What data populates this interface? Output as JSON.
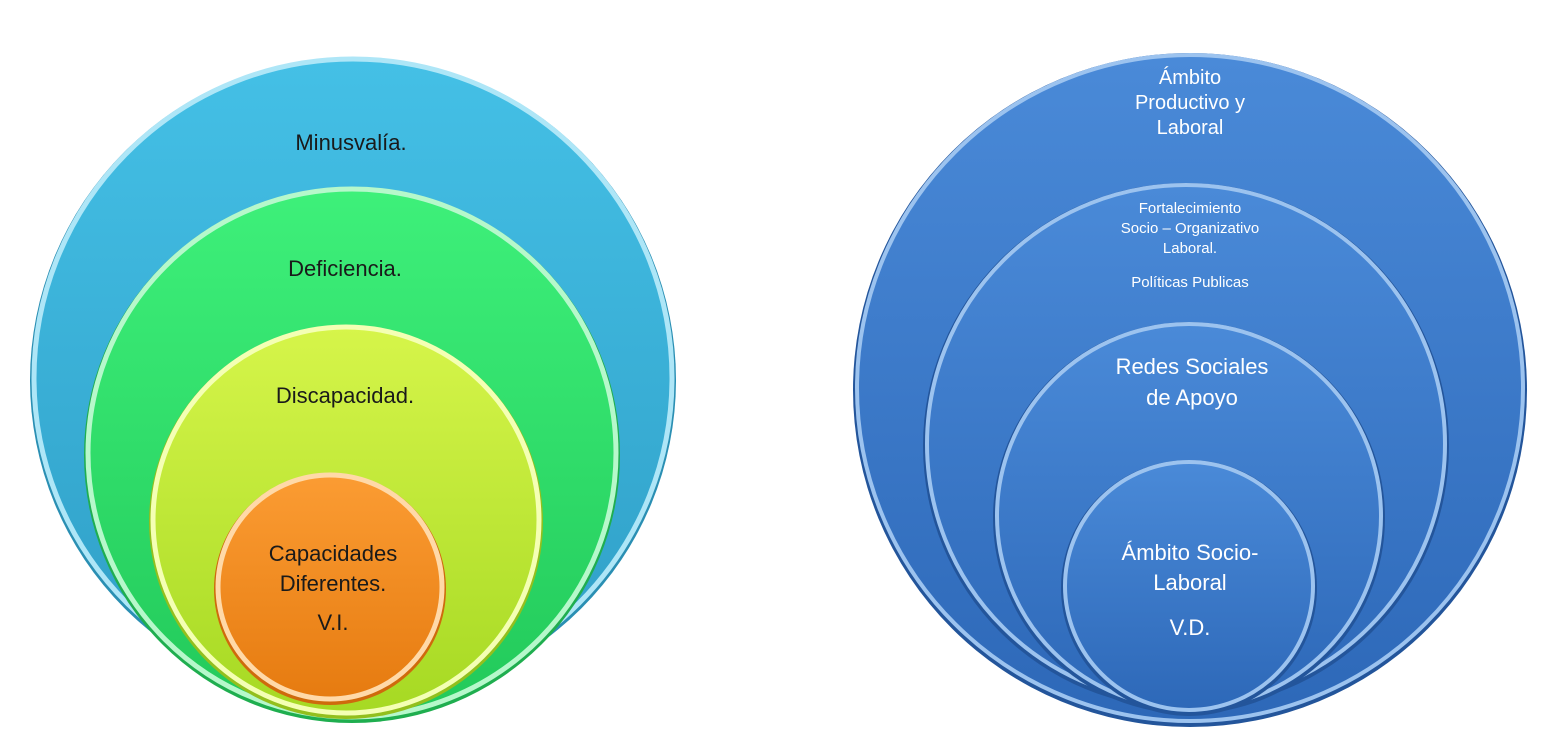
{
  "left_diagram": {
    "minusvalia": "Minusvalía.",
    "deficiencia": "Deficiencia.",
    "discapacidad": "Discapacidad.",
    "capacidades_line1": "Capacidades",
    "capacidades_line2": "Diferentes.",
    "vi": "V.I.",
    "colors": {
      "outer": "#3bb3d8",
      "green": "#2fe36a",
      "yellow": "#c7ee3b",
      "orange": "#f79022"
    }
  },
  "right_diagram": {
    "ambito_line1": "Ámbito",
    "ambito_line2": "Productivo y",
    "ambito_line3": "Laboral",
    "fortalecimiento_line1": "Fortalecimiento",
    "fortalecimiento_line2": "Socio – Organizativo",
    "fortalecimiento_line3": "Laboral.",
    "politicas": "Políticas Publicas",
    "redes_line1": "Redes Sociales",
    "redes_line2": "de Apoyo",
    "socio_line1": "Ámbito Socio-",
    "socio_line2": "Laboral",
    "vd": "V.D.",
    "colors": {
      "fill": "#3f7fd0"
    }
  }
}
